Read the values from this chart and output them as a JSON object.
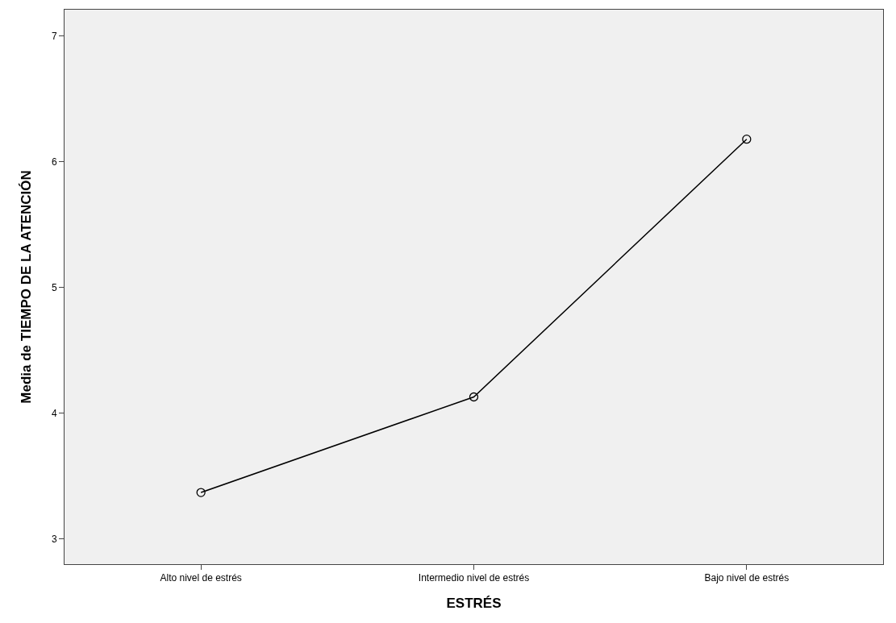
{
  "chart_data": {
    "type": "line",
    "xlabel": "ESTRÉS",
    "ylabel": "Media de TIEMPO DE LA ATENCIÓN",
    "categories": [
      "Alto nivel de estrés",
      "Intermedio nivel de estrés",
      "Bajo nivel de estrés"
    ],
    "series": [
      {
        "color": "#000000",
        "values": [
          3.37,
          4.13,
          6.18
        ]
      }
    ],
    "ylim": [
      2.8,
      7.21
    ],
    "yticks": [
      3,
      4,
      5,
      6,
      7
    ],
    "grid": false,
    "marker": "circle",
    "line_style": "solid"
  }
}
